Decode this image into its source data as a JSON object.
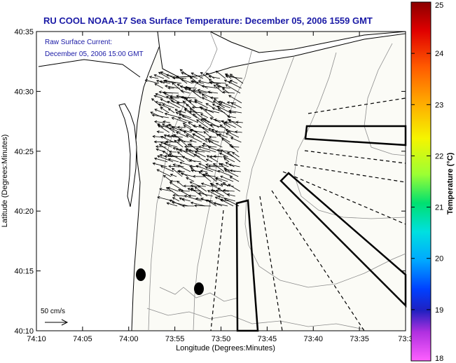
{
  "header": {
    "title": "RU COOL  NOAA-17  Sea Surface Temperature:  December 05, 2006 1559 GMT"
  },
  "current_note": {
    "line1": "Raw Surface Current:",
    "line2": "December 05, 2006 15:00 GMT"
  },
  "axes": {
    "xlabel": "Longitude (Degrees:Minutes)",
    "ylabel": "Latitude (Degrees:Minutes)",
    "x_ticks": [
      "74:10",
      "74:05",
      "74:00",
      "73:55",
      "73:50",
      "73:45",
      "73:40",
      "73:35",
      "73:3"
    ],
    "y_ticks": [
      "40:35",
      "40:30",
      "40:25",
      "40:20",
      "40:15",
      "40:10"
    ]
  },
  "colorbar": {
    "label": "Temperature (°C)",
    "ticks": [
      "25",
      "24",
      "23",
      "22",
      "21",
      "20",
      "19",
      "18"
    ],
    "min": 18,
    "max": 25
  },
  "scale_arrow": {
    "label": "50 cm/s"
  },
  "colors": {
    "title": "#1a1aa6",
    "land": "#ffffff",
    "ocean": "#fbfbf6",
    "contour": "#8c8c8c"
  }
}
